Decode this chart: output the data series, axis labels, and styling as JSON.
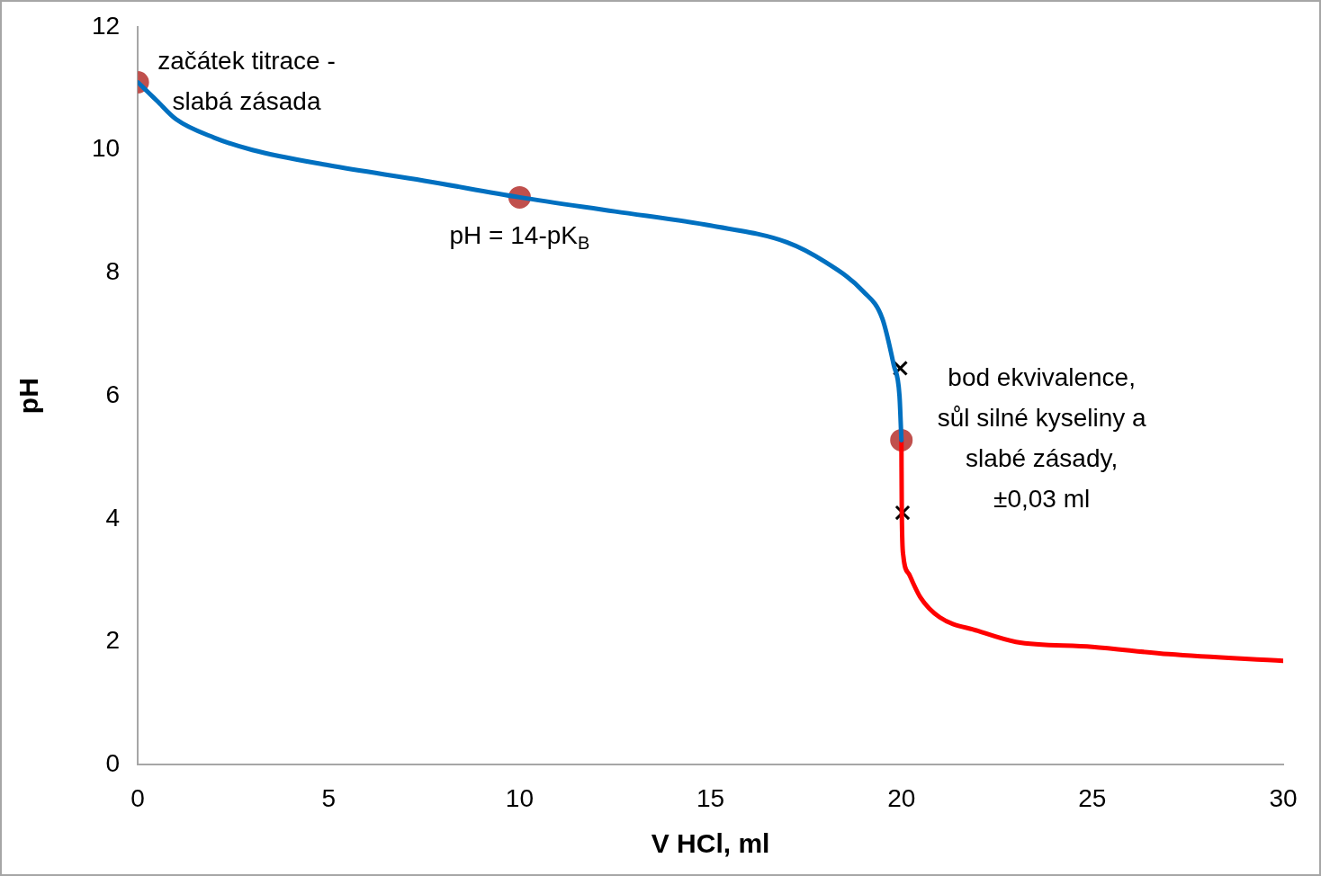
{
  "chart_data": {
    "type": "line",
    "xlabel": "V HCl, ml",
    "ylabel": "pH",
    "xlim": [
      0,
      30
    ],
    "xticks": [
      0,
      5,
      10,
      15,
      20,
      25,
      30
    ],
    "ylim": [
      0,
      12
    ],
    "yticks": [
      0,
      2,
      4,
      6,
      8,
      10,
      12
    ],
    "grid": false,
    "legend": false,
    "line_style": "solid",
    "marker": "none",
    "series": [
      {
        "color": "#0070c0",
        "x": [
          0,
          0.25,
          0.5,
          1,
          2,
          3,
          5,
          7.5,
          10,
          12.5,
          15,
          17,
          18,
          19,
          19.5,
          19.8,
          19.95,
          20
        ],
        "values": [
          11.1,
          10.95,
          10.8,
          10.5,
          10.2,
          10.0,
          9.75,
          9.5,
          9.23,
          9.0,
          8.77,
          8.5,
          8.18,
          7.7,
          7.26,
          6.5,
          6.0,
          5.28
        ]
      },
      {
        "color": "#ff0000",
        "x": [
          20,
          20.01,
          20.05,
          20.2,
          20.5,
          21,
          22,
          23,
          25,
          27,
          30
        ],
        "values": [
          5.28,
          4.1,
          3.4,
          3.1,
          2.72,
          2.4,
          2.18,
          2.0,
          1.92,
          1.8,
          1.69
        ]
      },
      {
        "type": "scatter",
        "color": "#c0504d",
        "marker": "circle",
        "x": [
          0,
          10,
          20
        ],
        "values": [
          11.1,
          9.23,
          5.28
        ]
      },
      {
        "type": "scatter",
        "color": "#000000",
        "marker": "cross",
        "x": [
          19.97,
          20.03
        ],
        "values": [
          6.45,
          4.1
        ]
      }
    ],
    "annotations": [
      {
        "text": "začátek titrace -\nslabá zásada",
        "x": 0,
        "y": 11.1
      },
      {
        "text": "pH = 14-pK$_{B}$",
        "x": 10,
        "y": 9.23
      },
      {
        "text": "bod ekvivalence,\nsůl silné kyseliny a\nslabé zásady,\n±0,03 ml",
        "x": 20,
        "y": 5.28
      }
    ]
  }
}
